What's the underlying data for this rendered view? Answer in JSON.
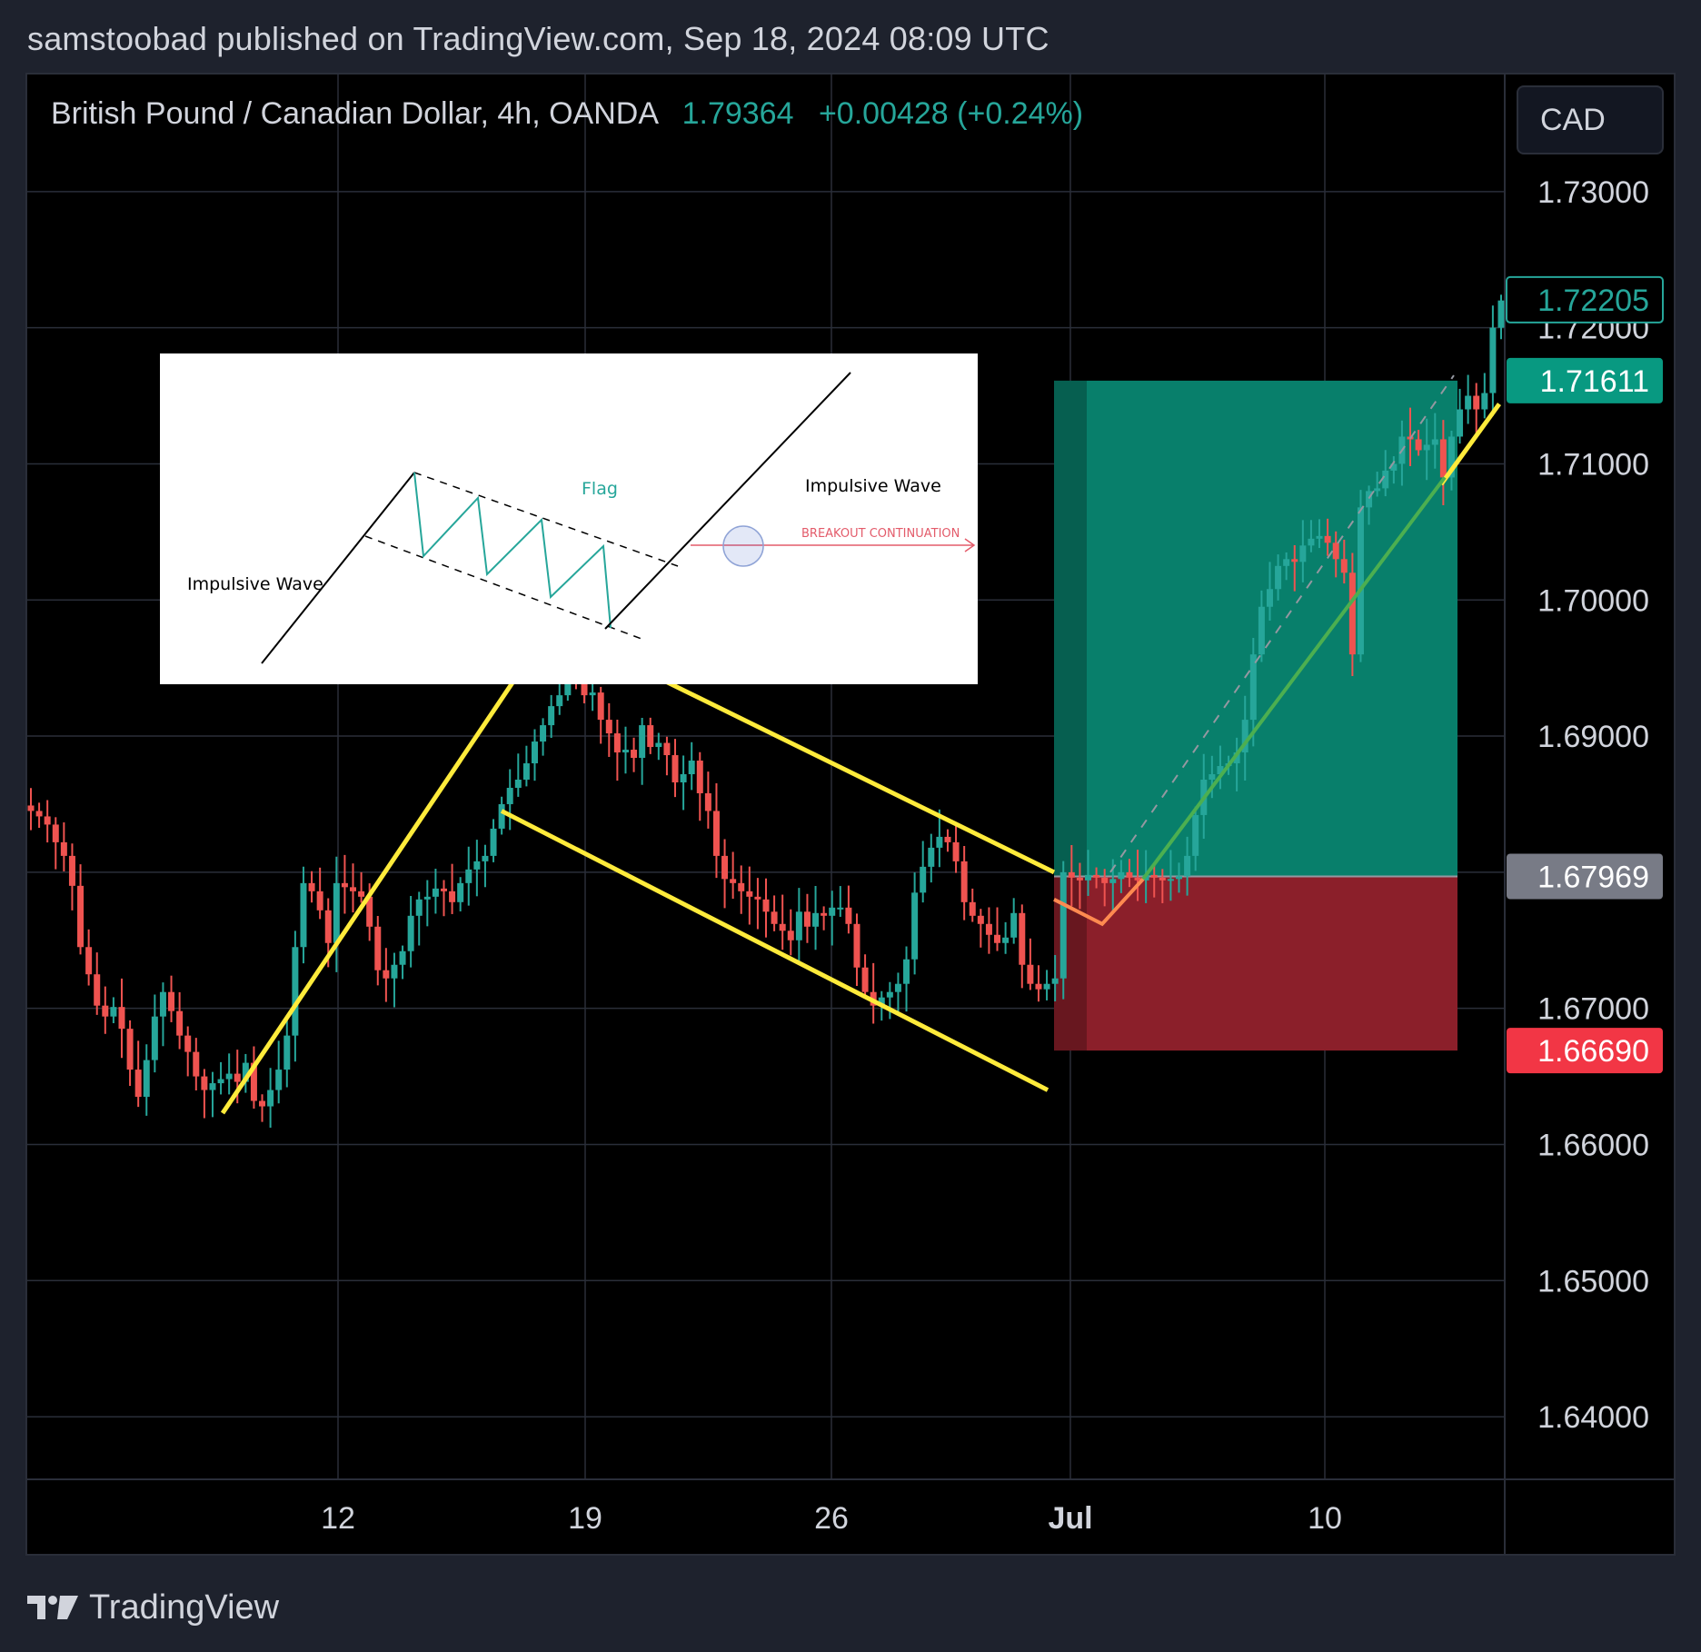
{
  "header": {
    "published_text": "samstoobad published on TradingView.com, Sep 18, 2024 08:09 UTC"
  },
  "legend": {
    "symbol": "British Pound / Canadian Dollar, 4h, OANDA",
    "price": "1.79364",
    "change": "+0.00428 (+0.24%)"
  },
  "currency_button": "CAD",
  "footer": {
    "brand": "TradingView"
  },
  "colors": {
    "up": "#26a69a",
    "down": "#ef5350",
    "yellow": "#ffeb3b",
    "profit_zone": "#087f6b",
    "loss_zone": "#8b1f2a",
    "background": "#000000",
    "panel": "#1e222d",
    "grid": "#2a2e39"
  },
  "inset": {
    "labels": {
      "left_wave": "Impulsive Wave",
      "flag": "Flag",
      "right_wave": "Impulsive Wave",
      "breakout": "BREAKOUT CONTINUATION"
    }
  },
  "chart_data": {
    "type": "candlestick",
    "symbol": "GBPCAD",
    "timeframe": "4h",
    "y_axis": {
      "ticks": [
        "1.73000",
        "1.72000",
        "1.71000",
        "1.70000",
        "1.69000",
        "1.68000",
        "1.67000",
        "1.66000",
        "1.65000",
        "1.64000"
      ],
      "range": [
        1.6354,
        1.7386
      ]
    },
    "x_axis": {
      "ticks": [
        "12",
        "19",
        "26",
        "Jul",
        "10"
      ]
    },
    "price_labels": [
      {
        "value": "1.72205",
        "kind": "current"
      },
      {
        "value": "1.71611",
        "kind": "target"
      },
      {
        "value": "1.67969",
        "kind": "entry"
      },
      {
        "value": "1.66690",
        "kind": "stop"
      }
    ],
    "trade_setup": {
      "type": "long position",
      "entry": 1.67969,
      "target": 1.71611,
      "stop": 1.6669
    },
    "pattern": "bull flag",
    "close_path": [
      1.6845,
      1.6841,
      1.6835,
      1.6822,
      1.6812,
      1.679,
      1.6745,
      1.6725,
      1.6702,
      1.6694,
      1.6701,
      1.6685,
      1.6655,
      1.6635,
      1.6662,
      1.6694,
      1.6712,
      1.6698,
      1.668,
      1.6668,
      1.665,
      1.664,
      1.6645,
      1.6648,
      1.6652,
      1.6646,
      1.666,
      1.6632,
      1.6628,
      1.664,
      1.6655,
      1.668,
      1.6745,
      1.6792,
      1.6786,
      1.6772,
      1.6748,
      1.6792,
      1.6789,
      1.6786,
      1.6782,
      1.676,
      1.6728,
      1.6722,
      1.6732,
      1.6742,
      1.6768,
      1.678,
      1.6782,
      1.6788,
      1.6786,
      1.6778,
      1.6792,
      1.6802,
      1.6808,
      1.6812,
      1.6832,
      1.685,
      1.6862,
      1.6868,
      1.688,
      1.6896,
      1.6908,
      1.6922,
      1.693,
      1.6945,
      1.694,
      1.693,
      1.6932,
      1.6912,
      1.6902,
      1.6888,
      1.689,
      1.6884,
      1.6908,
      1.6892,
      1.6895,
      1.6886,
      1.6866,
      1.6872,
      1.6882,
      1.6858,
      1.6845,
      1.6812,
      1.6795,
      1.6792,
      1.6786,
      1.6782,
      1.678,
      1.6771,
      1.6762,
      1.6757,
      1.675,
      1.6771,
      1.676,
      1.677,
      1.6768,
      1.6774,
      1.6774,
      1.6762,
      1.673,
      1.6712,
      1.6702,
      1.6708,
      1.6712,
      1.6718,
      1.6736,
      1.6785,
      1.6804,
      1.6818,
      1.6826,
      1.6822,
      1.6808,
      1.6778,
      1.6768,
      1.6762,
      1.6754,
      1.6748,
      1.6752,
      1.677,
      1.6732,
      1.6718,
      1.6714,
      1.6718,
      1.6722,
      1.68,
      1.6796,
      1.6794,
      1.6798,
      1.6796,
      1.6792,
      1.6795,
      1.68,
      1.6796,
      1.6794,
      1.6798,
      1.6796,
      1.6794,
      1.6795,
      1.6797,
      1.6812,
      1.6842,
      1.6868,
      1.6872,
      1.6878,
      1.688,
      1.6888,
      1.6912,
      1.696,
      1.6995,
      1.7008,
      1.7025,
      1.703,
      1.7028,
      1.704,
      1.7045,
      1.7047,
      1.7042,
      1.703,
      1.702,
      1.696,
      1.7068,
      1.708,
      1.7082,
      1.7095,
      1.71,
      1.712,
      1.7118,
      1.711,
      1.7114,
      1.7118,
      1.709,
      1.712,
      1.714,
      1.715,
      1.714,
      1.7152,
      1.72,
      1.722
    ]
  }
}
